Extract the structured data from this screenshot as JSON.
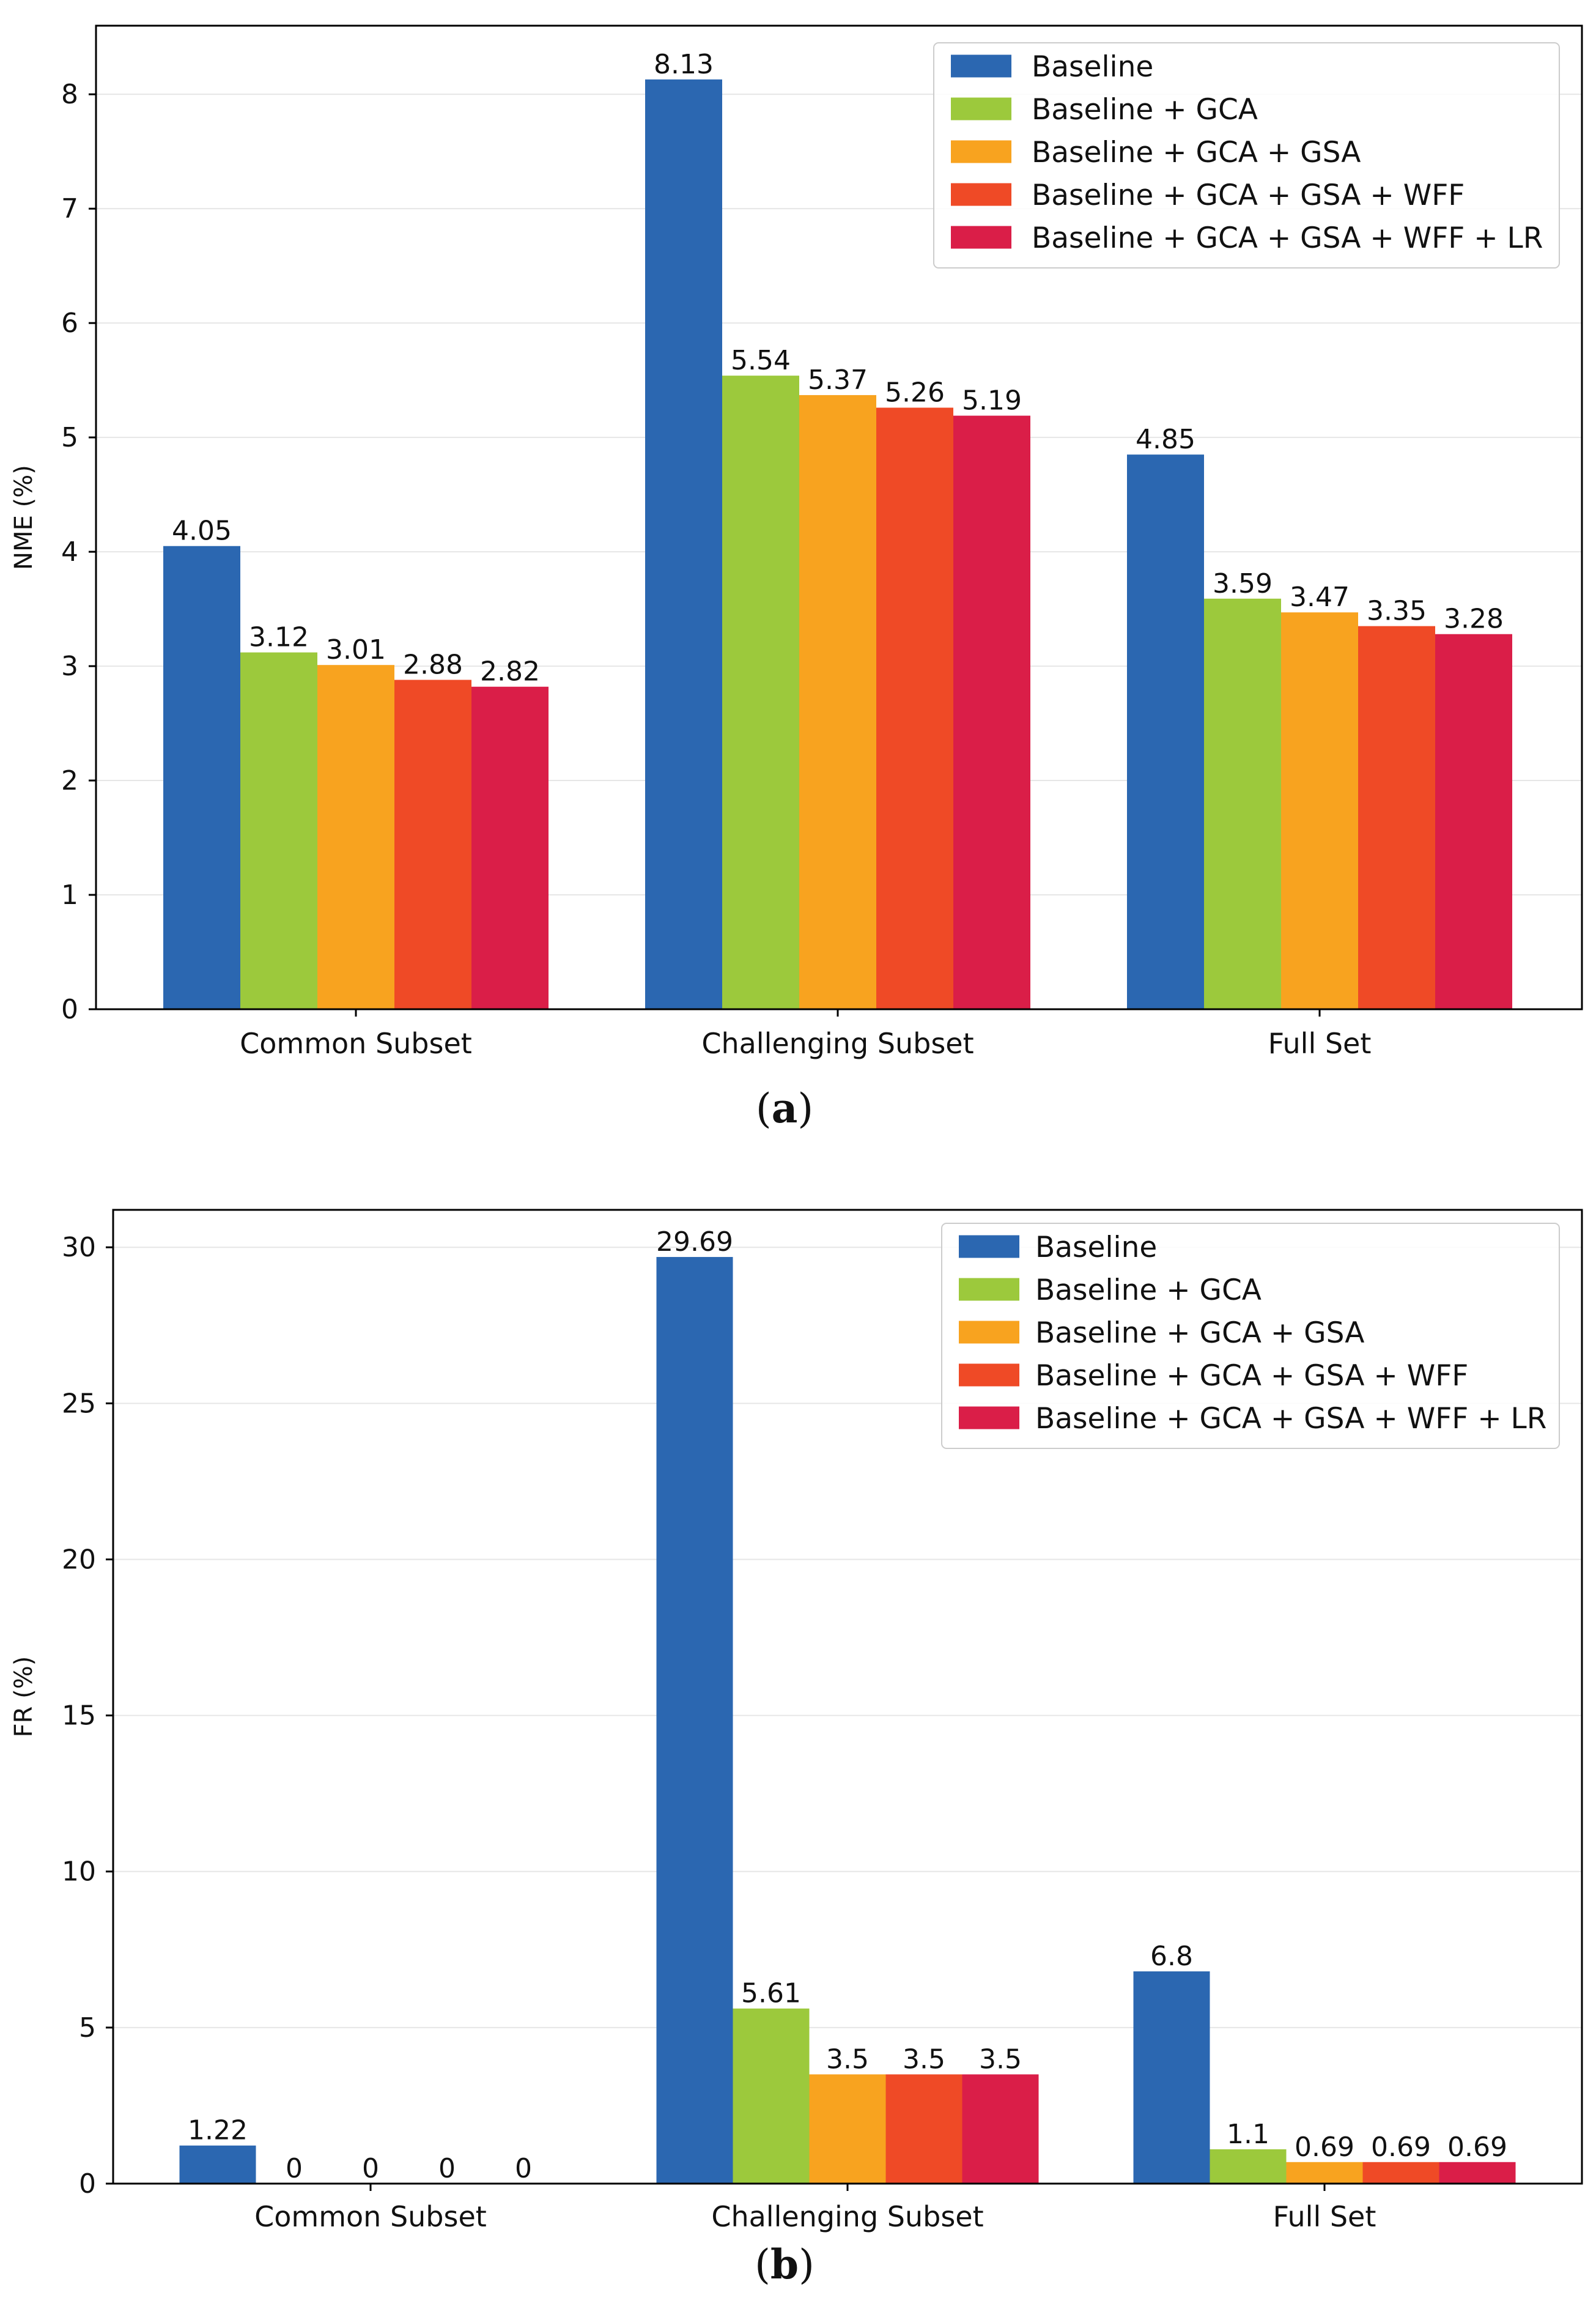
{
  "chart_data": [
    {
      "type": "bar",
      "panel_label": "a",
      "categories": [
        "Common Subset",
        "Challenging Subset",
        "Full Set"
      ],
      "series": [
        {
          "name": "Baseline",
          "color": "#2b67b1",
          "values": [
            4.05,
            8.13,
            4.85
          ],
          "labels": [
            "4.05",
            "8.13",
            "4.85"
          ]
        },
        {
          "name": "Baseline + GCA",
          "color": "#9cc93c",
          "values": [
            3.12,
            5.54,
            3.59
          ],
          "labels": [
            "3.12",
            "5.54",
            "3.59"
          ]
        },
        {
          "name": "Baseline + GCA + GSA",
          "color": "#f8a31f",
          "values": [
            3.01,
            5.37,
            3.47
          ],
          "labels": [
            "3.01",
            "5.37",
            "3.47"
          ]
        },
        {
          "name": "Baseline + GCA + GSA + WFF",
          "color": "#ef4a26",
          "values": [
            2.88,
            5.26,
            3.35
          ],
          "labels": [
            "2.88",
            "5.26",
            "3.35"
          ]
        },
        {
          "name": "Baseline + GCA + GSA + WFF + LR",
          "color": "#da1e48",
          "values": [
            2.82,
            5.19,
            3.28
          ],
          "labels": [
            "2.82",
            "5.19",
            "3.28"
          ]
        }
      ],
      "title": "",
      "xlabel": "",
      "ylabel": "NME (%)",
      "ylim": [
        0,
        8.6
      ],
      "yticks": [
        0,
        1,
        2,
        3,
        4,
        5,
        6,
        7,
        8
      ],
      "grid": true,
      "legend_position": "top-right"
    },
    {
      "type": "bar",
      "panel_label": "b",
      "categories": [
        "Common Subset",
        "Challenging Subset",
        "Full Set"
      ],
      "series": [
        {
          "name": "Baseline",
          "color": "#2b67b1",
          "values": [
            1.22,
            29.69,
            6.8
          ],
          "labels": [
            "1.22",
            "29.69",
            "6.8"
          ]
        },
        {
          "name": "Baseline + GCA",
          "color": "#9cc93c",
          "values": [
            0,
            5.61,
            1.1
          ],
          "labels": [
            "0",
            "5.61",
            "1.1"
          ]
        },
        {
          "name": "Baseline + GCA + GSA",
          "color": "#f8a31f",
          "values": [
            0,
            3.5,
            0.69
          ],
          "labels": [
            "0",
            "3.5",
            "0.69"
          ]
        },
        {
          "name": "Baseline + GCA + GSA + WFF",
          "color": "#ef4a26",
          "values": [
            0,
            3.5,
            0.69
          ],
          "labels": [
            "0",
            "3.5",
            "0.69"
          ]
        },
        {
          "name": "Baseline + GCA + GSA + WFF + LR",
          "color": "#da1e48",
          "values": [
            0,
            3.5,
            0.69
          ],
          "labels": [
            "0",
            "3.5",
            "0.69"
          ]
        }
      ],
      "title": "",
      "xlabel": "",
      "ylabel": "FR (%)",
      "ylim": [
        0,
        31.2
      ],
      "yticks": [
        0,
        5,
        10,
        15,
        20,
        25,
        30
      ],
      "grid": true,
      "legend_position": "top-right"
    }
  ]
}
